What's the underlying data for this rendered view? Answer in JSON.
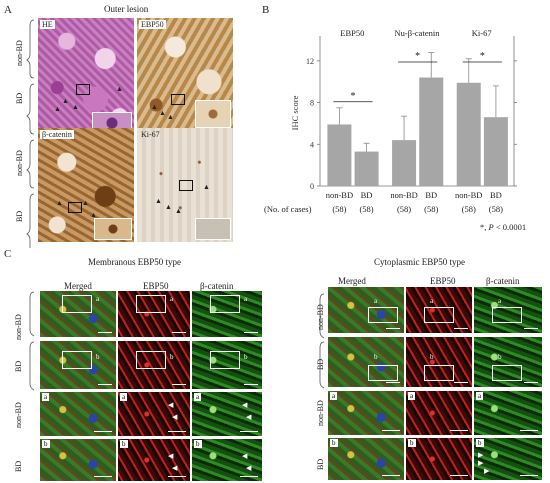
{
  "panelA": {
    "letter": "A",
    "title": "Outer lesion",
    "row_labels": [
      "non-BD",
      "BD",
      "non-BD",
      "BD"
    ],
    "stain_labels": [
      "HE",
      "EBP50",
      "β-catenin",
      "Ki-67"
    ]
  },
  "panelB": {
    "letter": "B",
    "footnote_star": "*, ",
    "footnote_p": "P",
    "footnote_rest": " < 0.0001",
    "cases_label": "(No. of cases)"
  },
  "chart_data": {
    "type": "bar",
    "ylabel": "IHC score",
    "ylim": [
      0,
      14
    ],
    "yticks": [
      0,
      4,
      8,
      12
    ],
    "groups": [
      {
        "title": "EBP50",
        "significance": "*",
        "bars": [
          {
            "label": "non-BD",
            "n": "(58)",
            "value": 5.9,
            "error": 1.6
          },
          {
            "label": "BD",
            "n": "(58)",
            "value": 3.3,
            "error": 0.8
          }
        ]
      },
      {
        "title": "Nu-β-catenin",
        "significance": "*",
        "bars": [
          {
            "label": "non-BD",
            "n": "(58)",
            "value": 4.4,
            "error": 2.3
          },
          {
            "label": "BD",
            "n": "(58)",
            "value": 10.4,
            "error": 2.4
          }
        ]
      },
      {
        "title": "Ki-67",
        "significance": "*",
        "bars": [
          {
            "label": "non-BD",
            "n": "(58)",
            "value": 9.9,
            "error": 2.3
          },
          {
            "label": "BD",
            "n": "(58)",
            "value": 6.6,
            "error": 3.0
          }
        ]
      }
    ]
  },
  "panelC": {
    "letter": "C",
    "left_title": "Membranous EBP50 type",
    "right_title": "Cytoplasmic EBP50 type",
    "col_labels": [
      "Merged",
      "EBP50",
      "β-catenin"
    ],
    "row_labels": [
      "non-BD",
      "BD",
      "non-BD",
      "BD"
    ],
    "inset_a": "a",
    "inset_b": "b"
  },
  "colors": {
    "he": "#b05aa6",
    "dab": "#b8884a",
    "red": "#c0201c",
    "green": "#2e8a22",
    "bar": "#a6a6a6"
  }
}
